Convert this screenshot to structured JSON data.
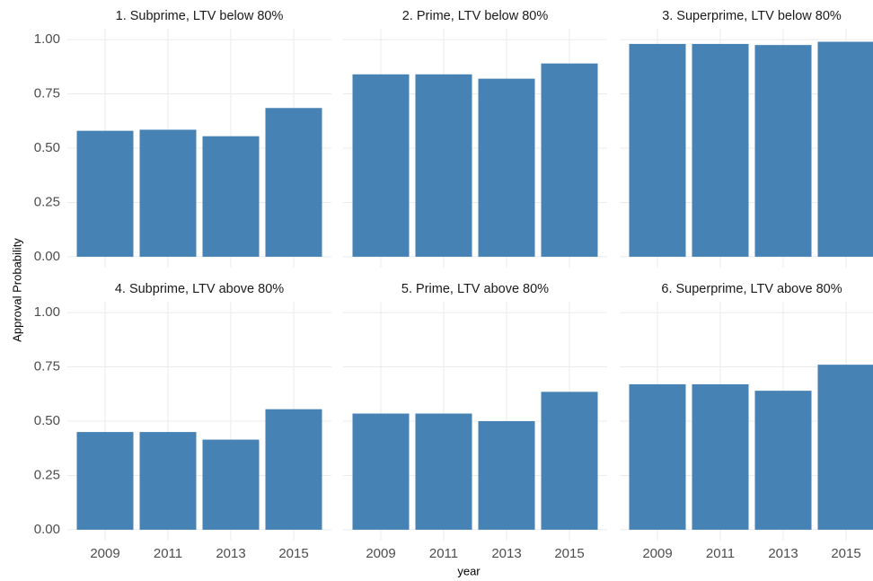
{
  "ylabel": "Approval Probability",
  "xlabel": "year",
  "categories": [
    "2009",
    "2011",
    "2013",
    "2015"
  ],
  "ylim": [
    -0.05,
    1.05
  ],
  "yticks": [
    {
      "value": 0,
      "label": "0.00"
    },
    0.25,
    {
      "value": 0.5,
      "label": "0.50"
    },
    0.75,
    {
      "value": 1,
      "label": "1.00"
    }
  ],
  "grid": true,
  "chart_data": [
    {
      "type": "bar",
      "title": "1. Subprime, LTV below 80%",
      "values": [
        0.58,
        0.585,
        0.555,
        0.685
      ],
      "color": "#4682b4"
    },
    {
      "type": "bar",
      "title": "2. Prime, LTV below 80%",
      "values": [
        0.84,
        0.84,
        0.82,
        0.89
      ],
      "color": "#4682b4"
    },
    {
      "type": "bar",
      "title": "3. Superprime, LTV below 80%",
      "values": [
        0.98,
        0.98,
        0.975,
        0.99
      ],
      "color": "#4682b4"
    },
    {
      "type": "bar",
      "title": "4. Subprime, LTV above 80%",
      "values": [
        0.45,
        0.45,
        0.415,
        0.555
      ],
      "color": "#4682b4"
    },
    {
      "type": "bar",
      "title": "5. Prime, LTV above 80%",
      "values": [
        0.535,
        0.535,
        0.5,
        0.635
      ],
      "color": "#4682b4"
    },
    {
      "type": "bar",
      "title": "6. Superprime, LTV above 80%",
      "values": [
        0.67,
        0.67,
        0.64,
        0.76
      ],
      "color": "#4682b4"
    }
  ]
}
